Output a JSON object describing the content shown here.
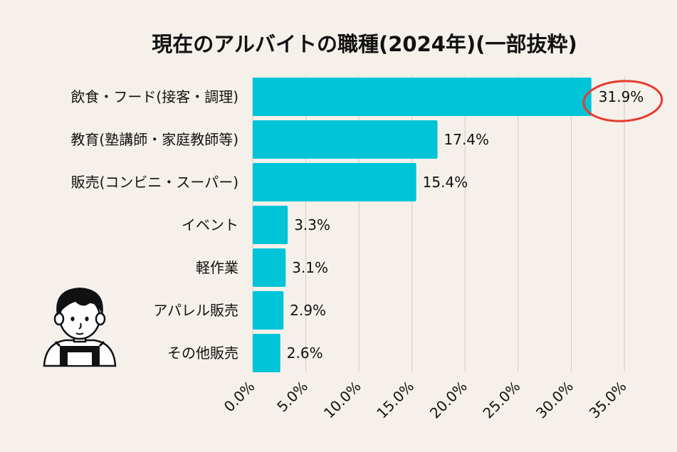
{
  "chart_data": {
    "type": "bar",
    "orientation": "horizontal",
    "title": "現在のアルバイトの職種(2024年)(一部抜粋)",
    "categories": [
      "飲食・フード(接客・調理)",
      "教育(塾講師・家庭教師等)",
      "販売(コンビニ・スーパー)",
      "イベント",
      "軽作業",
      "アパレル販売",
      "その他販売"
    ],
    "values": [
      31.9,
      17.4,
      15.4,
      3.3,
      3.1,
      2.9,
      2.6
    ],
    "value_labels": [
      "31.9%",
      "17.4%",
      "15.4%",
      "3.3%",
      "3.1%",
      "2.9%",
      "2.6%"
    ],
    "xlim": [
      0,
      35
    ],
    "x_ticks": [
      0,
      5,
      10,
      15,
      20,
      25,
      30,
      35
    ],
    "x_tick_labels": [
      "0.0%",
      "5.0%",
      "10.0%",
      "15.0%",
      "20.0%",
      "25.0%",
      "30.0%",
      "35.0%"
    ],
    "xlabel": "",
    "ylabel": "",
    "grid": "vertical",
    "highlighted_category": "飲食・フード(接客・調理)",
    "colors": {
      "background": "#f5f1ea",
      "bar": "#00c4d8",
      "grid": "#cfcbc4",
      "highlight": "#e63b2e",
      "text": "#111111"
    }
  }
}
